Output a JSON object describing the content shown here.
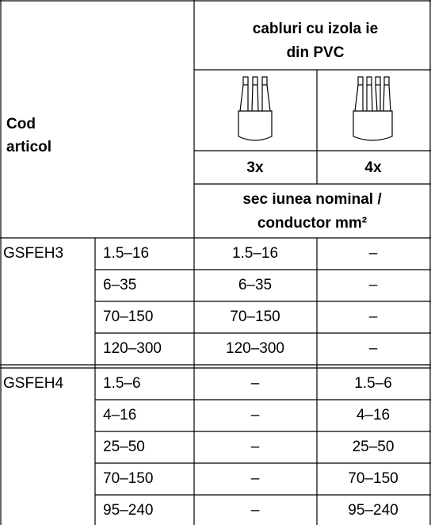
{
  "header": {
    "code_label": [
      "Cod",
      "articol"
    ],
    "cable_title": [
      "cabluri cu izola ie",
      "din PVC"
    ],
    "col_3x": "3x",
    "col_4x": "4x",
    "section_label": [
      "sec iunea nominal  /",
      "conductor mm²"
    ]
  },
  "groups": [
    {
      "code": "GSFEH3",
      "rows": [
        [
          "1.5–16",
          "1.5–16",
          "–"
        ],
        [
          "6–35",
          "6–35",
          "–"
        ],
        [
          "70–150",
          "70–150",
          "–"
        ],
        [
          "120–300",
          "120–300",
          "–"
        ]
      ]
    },
    {
      "code": "GSFEH4",
      "rows": [
        [
          "1.5–6",
          "–",
          "1.5–6"
        ],
        [
          "4–16",
          "–",
          "4–16"
        ],
        [
          "25–50",
          "–",
          "25–50"
        ],
        [
          "70–150",
          "–",
          "70–150"
        ],
        [
          "95–240",
          "–",
          "95–240"
        ]
      ]
    }
  ]
}
